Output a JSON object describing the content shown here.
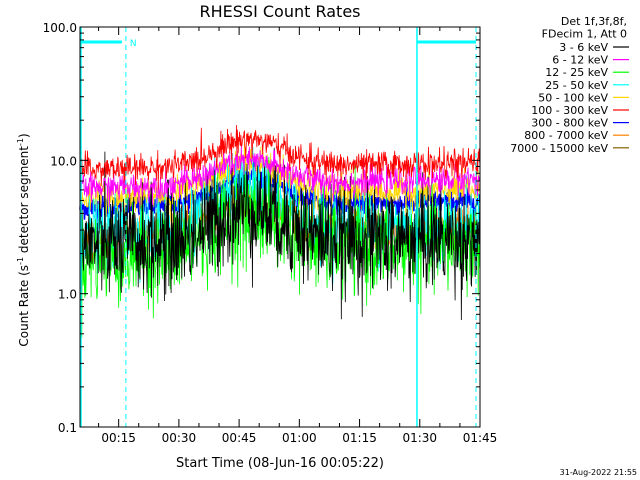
{
  "chart_data": {
    "type": "line",
    "title": "RHESSI Count Rates",
    "xlabel": "Start Time (08-Jun-16 00:05:22)",
    "ylabel_main": "Count Rate (s",
    "ylabel_sup1": "-1",
    "ylabel_mid": " detector segment",
    "ylabel_sup2": "-1",
    "ylabel_end": ")",
    "y_scale": "log",
    "ylim": [
      0.1,
      100
    ],
    "xlim_minutes": [
      5.37,
      105.0
    ],
    "x_ticks": [
      {
        "label": "00:15",
        "minute": 15
      },
      {
        "label": "00:30",
        "minute": 30
      },
      {
        "label": "00:45",
        "minute": 45
      },
      {
        "label": "01:00",
        "minute": 60
      },
      {
        "label": "01:15",
        "minute": 75
      },
      {
        "label": "01:30",
        "minute": 90
      },
      {
        "label": "01:45",
        "minute": 105
      }
    ],
    "y_ticks": [
      {
        "label": "0.1",
        "value": 0.1
      },
      {
        "label": "1.0",
        "value": 1.0
      },
      {
        "label": "10.0",
        "value": 10.0
      },
      {
        "label": "100.0",
        "value": 100.0
      }
    ],
    "legend_header": [
      "Det 1f,3f,8f,",
      "FDecim 1, Att 0"
    ],
    "legend_position": "right, outside plot",
    "series": [
      {
        "name": "3 - 6 keV",
        "color": "#000000",
        "level_start": 2.3,
        "level_peak": 4.6,
        "level_end": 2.6,
        "noise": 0.45
      },
      {
        "name": "6 - 12 keV",
        "color": "#ff00ff",
        "level_start": 6.2,
        "level_peak": 10.5,
        "level_end": 7.2,
        "noise": 0.12
      },
      {
        "name": "12 - 25 keV",
        "color": "#00ff00",
        "level_start": 1.8,
        "level_peak": 4.2,
        "level_end": 2.4,
        "noise": 0.4
      },
      {
        "name": "25 - 50 keV",
        "color": "#00ffff",
        "level_start": 2.9,
        "level_peak": 6.0,
        "level_end": 3.3,
        "noise": 0.3
      },
      {
        "name": "50 - 100 keV",
        "color": "#ffd700",
        "level_start": 5.2,
        "level_peak": 9.8,
        "level_end": 6.0,
        "noise": 0.15
      },
      {
        "name": "100 - 300 keV",
        "color": "#ff0000",
        "level_start": 8.5,
        "level_peak": 15.0,
        "level_end": 9.5,
        "noise": 0.12
      },
      {
        "name": "300 - 800 keV",
        "color": "#0000ff",
        "level_start": 4.4,
        "level_peak": 7.8,
        "level_end": 4.9,
        "noise": 0.1
      },
      {
        "name": "800 - 7000 keV",
        "color": "#ff8000",
        "level_start": 2.8,
        "level_peak": 5.2,
        "level_end": 3.1,
        "noise": 0.18
      },
      {
        "name": "7000 - 15000 keV",
        "color": "#806000",
        "level_start": 2.6,
        "level_peak": 4.8,
        "level_end": 2.9,
        "noise": 0.0
      }
    ],
    "markers": {
      "night_start_minute": 5.37,
      "night_end_minute": 16.8,
      "night2_start_minute": 89.3,
      "night2_end_minute": 104.0,
      "n_label": "N",
      "color": "#00ffff"
    },
    "peak_minute": 47.5,
    "timestamp": "31-Aug-2022 21:55"
  }
}
